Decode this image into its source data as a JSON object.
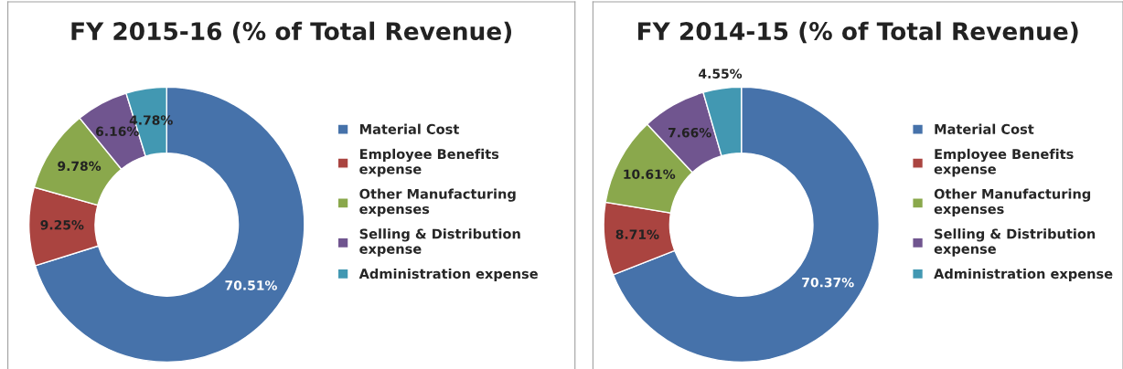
{
  "chart_data": [
    {
      "type": "donut",
      "title": "FY 2015-16 (% of Total Revenue)",
      "categories": [
        "Material Cost",
        "Employee Benefits expense",
        "Other Manufacturing expenses",
        "Selling & Distribution expense",
        "Administration expense"
      ],
      "values": [
        70.51,
        9.25,
        9.78,
        6.16,
        4.78
      ],
      "value_labels": [
        "70.51%",
        "9.25%",
        "9.78%",
        "6.16%",
        "4.78%"
      ],
      "colors": [
        "#4672aa",
        "#aa4440",
        "#8aa84c",
        "#70558f",
        "#4298b2"
      ],
      "legend": "right"
    },
    {
      "type": "donut",
      "title": "FY 2014-15 (% of Total Revenue)",
      "categories": [
        "Material Cost",
        "Employee Benefits expense",
        "Other Manufacturing expenses",
        "Selling & Distribution expense",
        "Administration expense"
      ],
      "values": [
        70.37,
        8.71,
        10.61,
        7.66,
        4.55
      ],
      "value_labels": [
        "70.37%",
        "8.71%",
        "10.61%",
        "7.66%",
        "4.55%"
      ],
      "colors": [
        "#4672aa",
        "#aa4440",
        "#8aa84c",
        "#70558f",
        "#4298b2"
      ],
      "legend": "right"
    }
  ]
}
